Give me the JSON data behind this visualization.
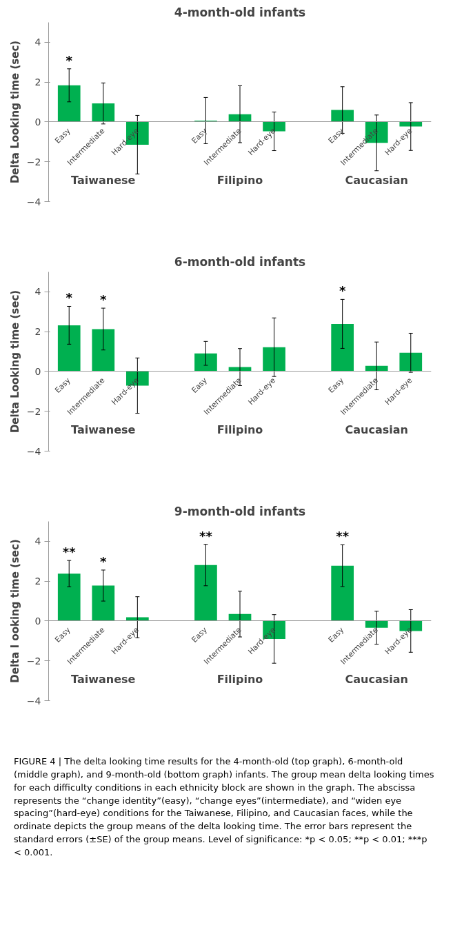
{
  "chart_data": [
    {
      "type": "bar",
      "title": "4-month-old infants",
      "ylabel": "Delta Looking time (sec)",
      "categories": [
        "Easy",
        "Intermediate",
        "Hard-eye",
        null,
        "Easy",
        "Intermediate",
        "Hard-eye",
        null,
        "Easy",
        "Intermediate",
        "Hard-eye"
      ],
      "values": [
        1.84,
        0.93,
        -1.14,
        null,
        0.07,
        0.39,
        -0.47,
        null,
        0.6,
        -1.05,
        -0.23
      ],
      "errors": [
        0.83,
        1.03,
        1.47,
        null,
        1.16,
        1.43,
        0.97,
        null,
        1.17,
        1.4,
        1.2
      ],
      "value_labels": [
        "*",
        null,
        null,
        null,
        null,
        null,
        null,
        null,
        null,
        null,
        null
      ],
      "color": "#00b050",
      "ylim": [
        -4,
        5
      ],
      "yticks": [
        -4,
        -2,
        0,
        2,
        4
      ],
      "annotations": [
        "Taiwanese",
        "Filipino",
        "Caucasian"
      ]
    },
    {
      "type": "bar",
      "title": "6-month-old infants",
      "ylabel": "Delta Looking time (sec)",
      "categories": [
        "Easy",
        "Intermediate",
        "Hard-eye",
        null,
        "Easy",
        "Intermediate",
        "Hard-eye",
        null,
        "Easy",
        "Intermediate",
        "Hard-eye"
      ],
      "values": [
        2.32,
        2.13,
        -0.71,
        null,
        0.91,
        0.22,
        1.22,
        null,
        2.39,
        0.28,
        0.94
      ],
      "errors": [
        0.95,
        1.05,
        1.39,
        null,
        0.6,
        0.93,
        1.47,
        null,
        1.23,
        1.2,
        0.98
      ],
      "value_labels": [
        "*",
        "*",
        null,
        null,
        null,
        null,
        null,
        null,
        "*",
        null,
        null
      ],
      "color": "#00b050",
      "ylim": [
        -4,
        5
      ],
      "yticks": [
        -4,
        -2,
        0,
        2,
        4
      ],
      "annotations": [
        "Taiwanese",
        "Filipino",
        "Caucasian"
      ]
    },
    {
      "type": "bar",
      "title": "9-month-old infants",
      "ylabel": "Delta I ooking time (sec)",
      "categories": [
        "Easy",
        "Intermediate",
        "Hard-eye",
        null,
        "Easy",
        "Intermediate",
        "Hard-eye",
        null,
        "Easy",
        "Intermediate",
        "Hard-eye"
      ],
      "values": [
        2.38,
        1.78,
        0.19,
        null,
        2.81,
        0.35,
        -0.9,
        null,
        2.78,
        -0.34,
        -0.5
      ],
      "errors": [
        0.66,
        0.78,
        1.03,
        null,
        1.04,
        1.15,
        1.22,
        null,
        1.05,
        0.83,
        1.07
      ],
      "value_labels": [
        "**",
        "*",
        null,
        null,
        "**",
        null,
        null,
        null,
        "**",
        null,
        null
      ],
      "color": "#00b050",
      "ylim": [
        -4,
        5
      ],
      "yticks": [
        -4,
        -2,
        0,
        2,
        4
      ],
      "annotations": [
        "Taiwanese",
        "Filipino",
        "Caucasian",
        "FIGURE 4 | The delta looking time results for the 4-month-old (top graph), 6-month-old (middle graph), and 9-month-old (bottom graph) infants. The group mean delta looking times for each difficulty conditions in each ethnicity block are shown in the graph. The abscissa represents the “change identity”(easy), “change eyes”(intermediate), and “widen eye spacing”(hard-eye) conditions for the Taiwanese, Filipino, and Caucasian faces, while the ordinate depicts the group means of the delta looking time. The error bars represent the standard errors (±SE) of the group means. Level of significance: *p < 0.05; **p < 0.01; ***p < 0.001."
      ]
    }
  ]
}
